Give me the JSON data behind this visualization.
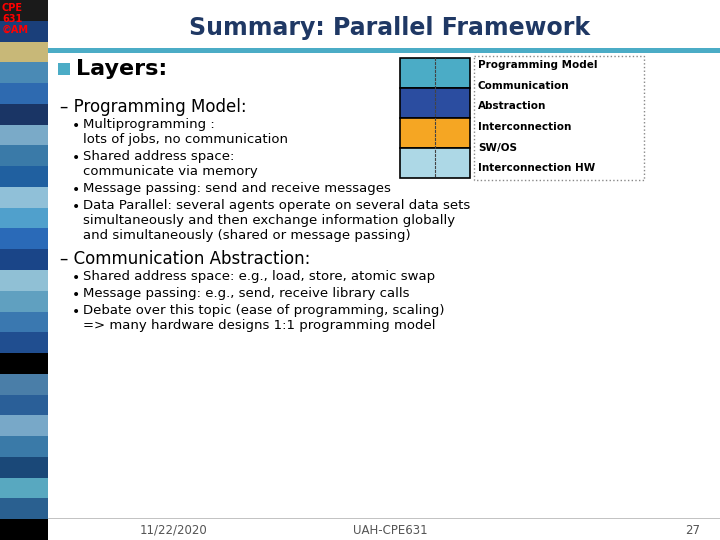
{
  "title": "Summary: Parallel Framework",
  "title_color": "#1F3864",
  "header_bar_color": "#4BACC6",
  "bg_color": "#F0F0F0",
  "slide_number": "27",
  "footer_left": "11/22/2020",
  "footer_center": "UAH-CPE631",
  "cpe_color": "#FF0000",
  "layers_bullet_color": "#4BACC6",
  "layers_text": "Layers:",
  "dash1_text": "– Programming Model:",
  "dash2_text": "– Communication Abstraction:",
  "bullets_prog_model": [
    "Multiprogramming :\nlots of jobs, no communication",
    "Shared address space:\ncommunicate via memory",
    "Message passing: send and receive messages",
    "Data Parallel: several agents operate on several data sets\nsimultaneously and then exchange information globally\nand simultaneously (shared or message passing)"
  ],
  "bullets_comm_abs": [
    "Shared address space: e.g., load, store, atomic swap",
    "Message passing: e.g., send, receive library calls",
    "Debate over this topic (ease of programming, scaling)\n=> many hardware designs 1:1 programming model"
  ],
  "stack_colors": [
    "#4BACC6",
    "#2B4DA0",
    "#F5A623",
    "#ADD8E6"
  ],
  "legend_labels": [
    "Programming Model",
    "Communication",
    "Abstraction",
    "Interconnection",
    "SW/OS",
    "Interconnection HW"
  ],
  "stripe_colors": [
    "#1A1A1A",
    "#1A3F7A",
    "#C8B878",
    "#4A8AB5",
    "#2E6AB0",
    "#1A3565",
    "#7AAAC8",
    "#3A7AA8",
    "#2060A0",
    "#90C0D8",
    "#50A0CC",
    "#2A6AB8",
    "#1A4588",
    "#90C0D5",
    "#60A0C0",
    "#3A78B0",
    "#204E90",
    "#000000",
    "#4A7EA8",
    "#2A5F98",
    "#78A8C8",
    "#3A7AA8",
    "#1A4878",
    "#58A8C0",
    "#2A6090",
    "#000000"
  ]
}
